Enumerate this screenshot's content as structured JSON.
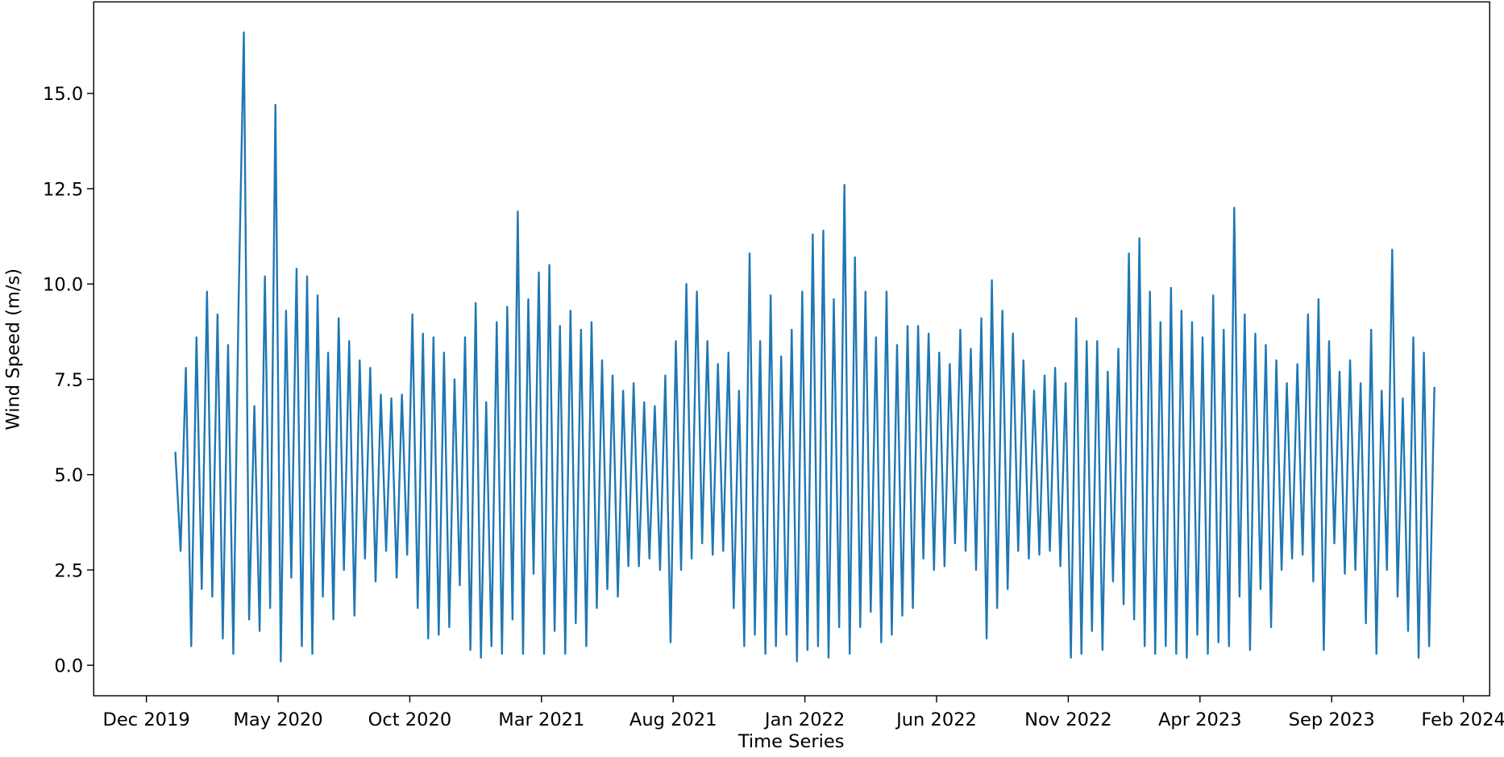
{
  "chart_data": {
    "type": "line",
    "xlabel": "Time Series",
    "ylabel": "Wind Speed (m/s)",
    "xlim": [
      "2019-10",
      "2024-03"
    ],
    "xticks": [
      {
        "value": "2019-12",
        "label": "Dec 2019"
      },
      {
        "value": "2020-05",
        "label": "May 2020"
      },
      {
        "value": "2020-10",
        "label": "Oct 2020"
      },
      {
        "value": "2021-03",
        "label": "Mar 2021"
      },
      {
        "value": "2021-08",
        "label": "Aug 2021"
      },
      {
        "value": "2022-01",
        "label": "Jan 2022"
      },
      {
        "value": "2022-06",
        "label": "Jun 2022"
      },
      {
        "value": "2022-11",
        "label": "Nov 2022"
      },
      {
        "value": "2023-04",
        "label": "Apr 2023"
      },
      {
        "value": "2023-09",
        "label": "Sep 2023"
      },
      {
        "value": "2024-02",
        "label": "Feb 2024"
      }
    ],
    "ylim": [
      -0.8,
      17.4
    ],
    "yticks": [
      {
        "value": 0,
        "label": "0.0"
      },
      {
        "value": 2.5,
        "label": "2.5"
      },
      {
        "value": 5,
        "label": "5.0"
      },
      {
        "value": 7.5,
        "label": "7.5"
      },
      {
        "value": 10,
        "label": "10.0"
      },
      {
        "value": 12.5,
        "label": "12.5"
      },
      {
        "value": 15,
        "label": "15.0"
      }
    ],
    "x": [
      "2020-01",
      "2020-01",
      "2020-01",
      "2020-01",
      "2020-01",
      "2020-02",
      "2020-02",
      "2020-02",
      "2020-02",
      "2020-02",
      "2020-03",
      "2020-03",
      "2020-03",
      "2020-03",
      "2020-03",
      "2020-04",
      "2020-04",
      "2020-04",
      "2020-04",
      "2020-04",
      "2020-05",
      "2020-05",
      "2020-05",
      "2020-05",
      "2020-05",
      "2020-06",
      "2020-06",
      "2020-06",
      "2020-06",
      "2020-06",
      "2020-07",
      "2020-07",
      "2020-07",
      "2020-07",
      "2020-07",
      "2020-08",
      "2020-08",
      "2020-08",
      "2020-08",
      "2020-08",
      "2020-09",
      "2020-09",
      "2020-09",
      "2020-09",
      "2020-09",
      "2020-10",
      "2020-10",
      "2020-10",
      "2020-10",
      "2020-10",
      "2020-11",
      "2020-11",
      "2020-11",
      "2020-11",
      "2020-11",
      "2020-12",
      "2020-12",
      "2020-12",
      "2020-12",
      "2020-12",
      "2021-01",
      "2021-01",
      "2021-01",
      "2021-01",
      "2021-01",
      "2021-02",
      "2021-02",
      "2021-02",
      "2021-02",
      "2021-02",
      "2021-03",
      "2021-03",
      "2021-03",
      "2021-03",
      "2021-03",
      "2021-04",
      "2021-04",
      "2021-04",
      "2021-04",
      "2021-04",
      "2021-05",
      "2021-05",
      "2021-05",
      "2021-05",
      "2021-05",
      "2021-06",
      "2021-06",
      "2021-06",
      "2021-06",
      "2021-06",
      "2021-07",
      "2021-07",
      "2021-07",
      "2021-07",
      "2021-07",
      "2021-08",
      "2021-08",
      "2021-08",
      "2021-08",
      "2021-08",
      "2021-09",
      "2021-09",
      "2021-09",
      "2021-09",
      "2021-09",
      "2021-10",
      "2021-10",
      "2021-10",
      "2021-10",
      "2021-10",
      "2021-11",
      "2021-11",
      "2021-11",
      "2021-11",
      "2021-11",
      "2021-12",
      "2021-12",
      "2021-12",
      "2021-12",
      "2021-12",
      "2022-01",
      "2022-01",
      "2022-01",
      "2022-01",
      "2022-01",
      "2022-02",
      "2022-02",
      "2022-02",
      "2022-02",
      "2022-02",
      "2022-03",
      "2022-03",
      "2022-03",
      "2022-03",
      "2022-03",
      "2022-04",
      "2022-04",
      "2022-04",
      "2022-04",
      "2022-04",
      "2022-05",
      "2022-05",
      "2022-05",
      "2022-05",
      "2022-05",
      "2022-06",
      "2022-06",
      "2022-06",
      "2022-06",
      "2022-06",
      "2022-07",
      "2022-07",
      "2022-07",
      "2022-07",
      "2022-07",
      "2022-08",
      "2022-08",
      "2022-08",
      "2022-08",
      "2022-08",
      "2022-09",
      "2022-09",
      "2022-09",
      "2022-09",
      "2022-09",
      "2022-10",
      "2022-10",
      "2022-10",
      "2022-10",
      "2022-10",
      "2022-11",
      "2022-11",
      "2022-11",
      "2022-11",
      "2022-11",
      "2022-12",
      "2022-12",
      "2022-12",
      "2022-12",
      "2022-12",
      "2023-01",
      "2023-01",
      "2023-01",
      "2023-01",
      "2023-01",
      "2023-02",
      "2023-02",
      "2023-02",
      "2023-02",
      "2023-02",
      "2023-03",
      "2023-03",
      "2023-03",
      "2023-03",
      "2023-03",
      "2023-04",
      "2023-04",
      "2023-04",
      "2023-04",
      "2023-04",
      "2023-05",
      "2023-05",
      "2023-05",
      "2023-05",
      "2023-05",
      "2023-06",
      "2023-06",
      "2023-06",
      "2023-06",
      "2023-06",
      "2023-07",
      "2023-07",
      "2023-07",
      "2023-07",
      "2023-07",
      "2023-08",
      "2023-08",
      "2023-08",
      "2023-08",
      "2023-08",
      "2023-09",
      "2023-09",
      "2023-09",
      "2023-09",
      "2023-09",
      "2023-10",
      "2023-10",
      "2023-10",
      "2023-10",
      "2023-10",
      "2023-11",
      "2023-11",
      "2023-11",
      "2023-11",
      "2023-11",
      "2023-12",
      "2023-12",
      "2023-12",
      "2023-12",
      "2023-12"
    ],
    "series": [
      {
        "color": "#1f77b4",
        "values": [
          5.6,
          3.0,
          7.8,
          0.5,
          8.6,
          2.0,
          9.8,
          1.8,
          9.2,
          0.7,
          8.4,
          0.3,
          9.5,
          16.6,
          1.2,
          6.8,
          0.9,
          10.2,
          1.5,
          14.7,
          0.1,
          9.3,
          2.3,
          10.4,
          0.5,
          10.2,
          0.3,
          9.7,
          1.8,
          8.2,
          1.2,
          9.1,
          2.5,
          8.5,
          1.3,
          8.0,
          2.8,
          7.8,
          2.2,
          7.1,
          3.0,
          7.0,
          2.3,
          7.1,
          2.9,
          9.2,
          1.5,
          8.7,
          0.7,
          8.6,
          0.8,
          8.2,
          1.0,
          7.5,
          2.1,
          8.6,
          0.4,
          9.5,
          0.2,
          6.9,
          0.5,
          9.0,
          0.3,
          9.4,
          1.2,
          11.9,
          0.3,
          9.6,
          2.4,
          10.3,
          0.3,
          10.5,
          0.9,
          8.9,
          0.3,
          9.3,
          1.1,
          8.8,
          0.5,
          9.0,
          1.5,
          8.0,
          2.0,
          7.6,
          1.8,
          7.2,
          2.6,
          7.4,
          2.6,
          6.9,
          2.8,
          6.8,
          2.5,
          7.6,
          0.6,
          8.5,
          2.5,
          10.0,
          2.8,
          9.8,
          3.2,
          8.5,
          2.9,
          7.9,
          3.0,
          8.2,
          1.5,
          7.2,
          0.5,
          10.8,
          0.8,
          8.5,
          0.3,
          9.7,
          0.5,
          8.1,
          0.8,
          8.8,
          0.1,
          9.8,
          0.4,
          11.3,
          0.5,
          11.4,
          0.2,
          9.6,
          1.0,
          12.6,
          0.3,
          10.7,
          1.0,
          9.8,
          1.4,
          8.6,
          0.6,
          9.8,
          0.8,
          8.4,
          1.3,
          8.9,
          1.5,
          8.9,
          2.8,
          8.7,
          2.5,
          8.2,
          2.6,
          7.9,
          3.2,
          8.8,
          3.0,
          8.3,
          2.5,
          9.1,
          0.7,
          10.1,
          1.5,
          9.3,
          2.0,
          8.7,
          3.0,
          8.0,
          2.8,
          7.2,
          2.9,
          7.6,
          3.0,
          7.8,
          2.6,
          7.4,
          0.2,
          9.1,
          0.3,
          8.5,
          0.9,
          8.5,
          0.4,
          7.7,
          2.2,
          8.3,
          1.6,
          10.8,
          1.2,
          11.2,
          0.5,
          9.8,
          0.3,
          9.0,
          0.5,
          9.9,
          0.3,
          9.3,
          0.2,
          9.0,
          0.8,
          8.6,
          0.3,
          9.7,
          0.6,
          8.8,
          0.5,
          12.0,
          1.8,
          9.2,
          0.4,
          8.7,
          2.0,
          8.4,
          1.0,
          8.0,
          2.5,
          7.4,
          2.8,
          7.9,
          2.9,
          9.2,
          2.2,
          9.6,
          0.4,
          8.5,
          3.2,
          7.7,
          2.4,
          8.0,
          2.5,
          7.4,
          1.1,
          8.8,
          0.3,
          7.2,
          2.5,
          10.9,
          1.8,
          7.0,
          0.9,
          8.6,
          0.2,
          8.2,
          0.5,
          7.3
        ]
      }
    ]
  }
}
